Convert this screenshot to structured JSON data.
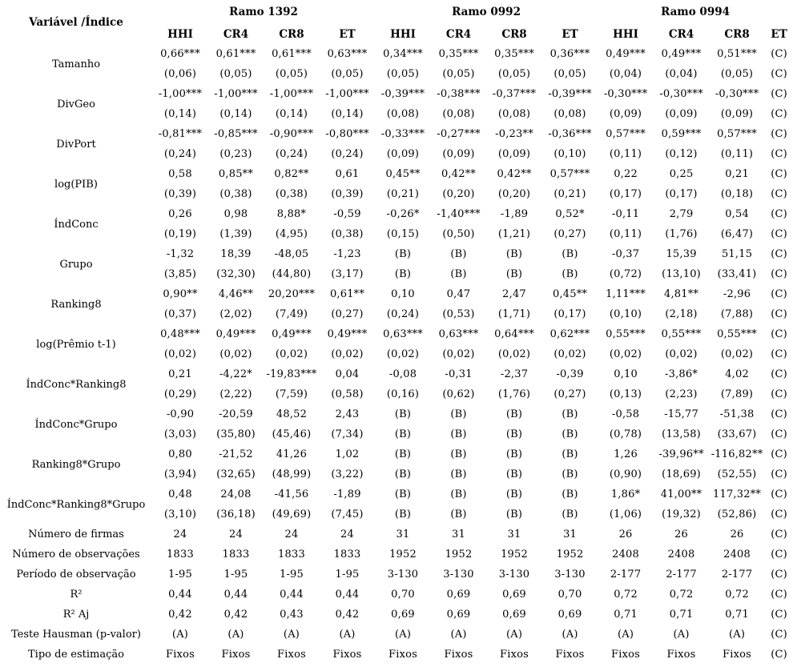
{
  "table": {
    "corner_label": "Variável /Índice",
    "groups": [
      {
        "label": "Ramo 1392",
        "span": 4
      },
      {
        "label": "Ramo 0992",
        "span": 4
      },
      {
        "label": "Ramo 0994",
        "span": 4
      }
    ],
    "sub_headers": [
      "HHI",
      "CR4",
      "CR8",
      "ET",
      "HHI",
      "CR4",
      "CR8",
      "ET",
      "HHI",
      "CR4",
      "CR8",
      "ET"
    ],
    "rows": [
      {
        "label": "Tamanho",
        "coef": [
          "0,66***",
          "0,61***",
          "0,61***",
          "0,63***",
          "0,34***",
          "0,35***",
          "0,35***",
          "0,36***",
          "0,49***",
          "0,49***",
          "0,51***",
          "(C)"
        ],
        "se": [
          "(0,06)",
          "(0,05)",
          "(0,05)",
          "(0,05)",
          "(0,05)",
          "(0,05)",
          "(0,05)",
          "(0,05)",
          "(0,04)",
          "(0,04)",
          "(0,05)",
          "(C)"
        ]
      },
      {
        "label": "DivGeo",
        "coef": [
          "-1,00***",
          "-1,00***",
          "-1,00***",
          "-1,00***",
          "-0,39***",
          "-0,38***",
          "-0,37***",
          "-0,39***",
          "-0,30***",
          "-0,30***",
          "-0,30***",
          "(C)"
        ],
        "se": [
          "(0,14)",
          "(0,14)",
          "(0,14)",
          "(0,14)",
          "(0,08)",
          "(0,08)",
          "(0,08)",
          "(0,08)",
          "(0,09)",
          "(0,09)",
          "(0,09)",
          "(C)"
        ]
      },
      {
        "label": "DivPort",
        "coef": [
          "-0,81***",
          "-0,85***",
          "-0,90***",
          "-0,80***",
          "-0,33***",
          "-0,27***",
          "-0,23**",
          "-0,36***",
          "0,57***",
          "0,59***",
          "0,57***",
          "(C)"
        ],
        "se": [
          "(0,24)",
          "(0,23)",
          "(0,24)",
          "(0,24)",
          "(0,09)",
          "(0,09)",
          "(0,09)",
          "(0,10)",
          "(0,11)",
          "(0,12)",
          "(0,11)",
          "(C)"
        ]
      },
      {
        "label": "log(PIB)",
        "coef": [
          "0,58",
          "0,85**",
          "0,82**",
          "0,61",
          "0,45**",
          "0,42**",
          "0,42**",
          "0,57***",
          "0,22",
          "0,25",
          "0,21",
          "(C)"
        ],
        "se": [
          "(0,39)",
          "(0,38)",
          "(0,38)",
          "(0,39)",
          "(0,21)",
          "(0,20)",
          "(0,20)",
          "(0,21)",
          "(0,17)",
          "(0,17)",
          "(0,18)",
          "(C)"
        ]
      },
      {
        "label": "ÍndConc",
        "coef": [
          "0,26",
          "0,98",
          "8,88*",
          "-0,59",
          "-0,26*",
          "-1,40***",
          "-1,89",
          "0,52*",
          "-0,11",
          "2,79",
          "0,54",
          "(C)"
        ],
        "se": [
          "(0,19)",
          "(1,39)",
          "(4,95)",
          "(0,38)",
          "(0,15)",
          "(0,50)",
          "(1,21)",
          "(0,27)",
          "(0,11)",
          "(1,76)",
          "(6,47)",
          "(C)"
        ]
      },
      {
        "label": "Grupo",
        "coef": [
          "-1,32",
          "18,39",
          "-48,05",
          "-1,23",
          "(B)",
          "(B)",
          "(B)",
          "(B)",
          "-0,37",
          "15,39",
          "51,15",
          "(C)"
        ],
        "se": [
          "(3,85)",
          "(32,30)",
          "(44,80)",
          "(3,17)",
          "(B)",
          "(B)",
          "(B)",
          "(B)",
          "(0,72)",
          "(13,10)",
          "(33,41)",
          "(C)"
        ]
      },
      {
        "label": "Ranking8",
        "coef": [
          "0,90**",
          "4,46**",
          "20,20***",
          "0,61**",
          "0,10",
          "0,47",
          "2,47",
          "0,45**",
          "1,11***",
          "4,81**",
          "-2,96",
          "(C)"
        ],
        "se": [
          "(0,37)",
          "(2,02)",
          "(7,49)",
          "(0,27)",
          "(0,24)",
          "(0,53)",
          "(1,71)",
          "(0,17)",
          "(0,10)",
          "(2,18)",
          "(7,88)",
          "(C)"
        ]
      },
      {
        "label": "log(Prêmio t-1)",
        "coef": [
          "0,48***",
          "0,49***",
          "0,49***",
          "0,49***",
          "0,63***",
          "0,63***",
          "0,64***",
          "0,62***",
          "0,55***",
          "0,55***",
          "0,55***",
          "(C)"
        ],
        "se": [
          "(0,02)",
          "(0,02)",
          "(0,02)",
          "(0,02)",
          "(0,02)",
          "(0,02)",
          "(0,02)",
          "(0,02)",
          "(0,02)",
          "(0,02)",
          "(0,02)",
          "(C)"
        ]
      },
      {
        "label": "ÍndConc*Ranking8",
        "coef": [
          "0,21",
          "-4,22*",
          "-19,83***",
          "0,04",
          "-0,08",
          "-0,31",
          "-2,37",
          "-0,39",
          "0,10",
          "-3,86*",
          "4,02",
          "(C)"
        ],
        "se": [
          "(0,29)",
          "(2,22)",
          "(7,59)",
          "(0,58)",
          "(0,16)",
          "(0,62)",
          "(1,76)",
          "(0,27)",
          "(0,13)",
          "(2,23)",
          "(7,89)",
          "(C)"
        ]
      },
      {
        "label": "ÍndConc*Grupo",
        "coef": [
          "-0,90",
          "-20,59",
          "48,52",
          "2,43",
          "(B)",
          "(B)",
          "(B)",
          "(B)",
          "-0,58",
          "-15,77",
          "-51,38",
          "(C)"
        ],
        "se": [
          "(3,03)",
          "(35,80)",
          "(45,46)",
          "(7,34)",
          "(B)",
          "(B)",
          "(B)",
          "(B)",
          "(0,78)",
          "(13,58)",
          "(33,67)",
          "(C)"
        ]
      },
      {
        "label": "Ranking8*Grupo",
        "coef": [
          "0,80",
          "-21,52",
          "41,26",
          "1,02",
          "(B)",
          "(B)",
          "(B)",
          "(B)",
          "1,26",
          "-39,96**",
          "-116,82**",
          "(C)"
        ],
        "se": [
          "(3,94)",
          "(32,65)",
          "(48,99)",
          "(3,22)",
          "(B)",
          "(B)",
          "(B)",
          "(B)",
          "(0,90)",
          "(18,69)",
          "(52,55)",
          "(C)"
        ]
      },
      {
        "label": "ÍndConc*Ranking8*Grupo",
        "coef": [
          "0,48",
          "24,08",
          "-41,56",
          "-1,89",
          "(B)",
          "(B)",
          "(B)",
          "(B)",
          "1,86*",
          "41,00**",
          "117,32**",
          "(C)"
        ],
        "se": [
          "(3,10)",
          "(36,18)",
          "(49,69)",
          "(7,45)",
          "(B)",
          "(B)",
          "(B)",
          "(B)",
          "(1,06)",
          "(19,32)",
          "(52,86)",
          "(C)"
        ]
      },
      {
        "label": "Número de firmas",
        "coef": [
          "24",
          "24",
          "24",
          "24",
          "31",
          "31",
          "31",
          "31",
          "26",
          "26",
          "26",
          "(C)"
        ]
      },
      {
        "label": "Número de observações",
        "coef": [
          "1833",
          "1833",
          "1833",
          "1833",
          "1952",
          "1952",
          "1952",
          "1952",
          "2408",
          "2408",
          "2408",
          "(C)"
        ]
      },
      {
        "label": "Período de observação",
        "coef": [
          "1-95",
          "1-95",
          "1-95",
          "1-95",
          "3-130",
          "3-130",
          "3-130",
          "3-130",
          "2-177",
          "2-177",
          "2-177",
          "(C)"
        ]
      },
      {
        "label": "R²",
        "coef": [
          "0,44",
          "0,44",
          "0,44",
          "0,44",
          "0,70",
          "0,69",
          "0,69",
          "0,70",
          "0,72",
          "0,72",
          "0,72",
          "(C)"
        ]
      },
      {
        "label": "R² Aj",
        "coef": [
          "0,42",
          "0,42",
          "0,43",
          "0,42",
          "0,69",
          "0,69",
          "0,69",
          "0,69",
          "0,71",
          "0,71",
          "0,71",
          "(C)"
        ]
      },
      {
        "label": "Teste Hausman (p-valor)",
        "coef": [
          "(A)",
          "(A)",
          "(A)",
          "(A)",
          "(A)",
          "(A)",
          "(A)",
          "(A)",
          "(A)",
          "(A)",
          "(A)",
          "(C)"
        ]
      },
      {
        "label": "Tipo de estimação",
        "coef": [
          "Fixos",
          "Fixos",
          "Fixos",
          "Fixos",
          "Fixos",
          "Fixos",
          "Fixos",
          "Fixos",
          "Fixos",
          "Fixos",
          "Fixos",
          "(C)"
        ]
      }
    ]
  }
}
